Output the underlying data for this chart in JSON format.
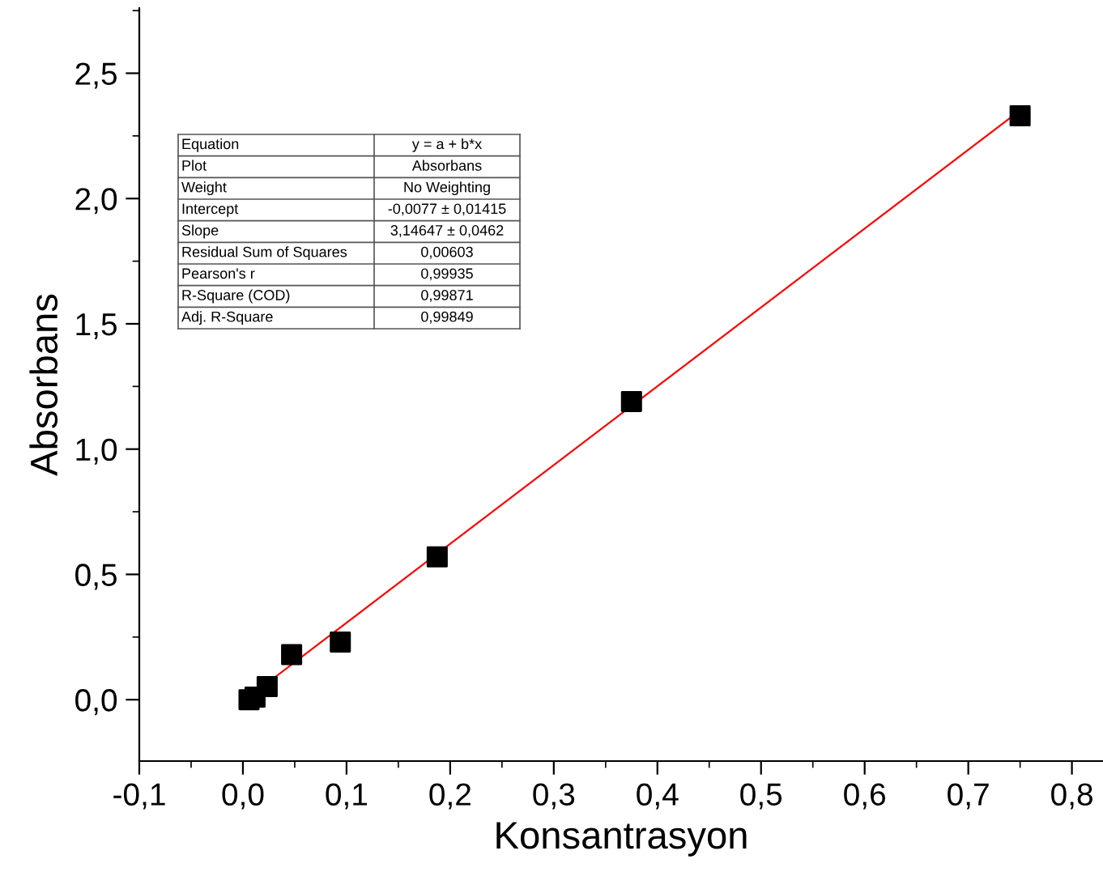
{
  "chart_data": {
    "type": "scatter",
    "xlabel": "Konsantrasyon",
    "ylabel": "Absorbans",
    "xlim": [
      -0.1,
      0.83
    ],
    "ylim": [
      -0.245,
      2.76
    ],
    "xticks": [
      {
        "value": -0.1,
        "label": "-0,1"
      },
      {
        "value": 0,
        "label": "0,0"
      },
      {
        "value": 0.1,
        "label": "0,1"
      },
      {
        "value": 0.2,
        "label": "0,2"
      },
      {
        "value": 0.3,
        "label": "0,3"
      },
      {
        "value": 0.4,
        "label": "0,4"
      },
      {
        "value": 0.5,
        "label": "0,5"
      },
      {
        "value": 0.6,
        "label": "0,6"
      },
      {
        "value": 0.7,
        "label": "0,7"
      },
      {
        "value": 0.8,
        "label": "0,8"
      }
    ],
    "yticks": [
      {
        "value": 0,
        "label": "0,0"
      },
      {
        "value": 0.5,
        "label": "0,5"
      },
      {
        "value": 1,
        "label": "1,0"
      },
      {
        "value": 1.5,
        "label": "1,5"
      },
      {
        "value": 2,
        "label": "2,0"
      },
      {
        "value": 2.5,
        "label": "2,5"
      }
    ],
    "grid": false,
    "legend": false,
    "series": [
      {
        "marker": "square",
        "color": "#000000",
        "x": [
          0.0059,
          0.0117,
          0.0234,
          0.047,
          0.094,
          0.1875,
          0.375,
          0.75
        ],
        "values": [
          0.0,
          0.01,
          0.052,
          0.18,
          0.23,
          0.57,
          1.19,
          2.33
        ]
      },
      {
        "type": "line",
        "marker": "none",
        "color": "#ff0000",
        "x": [
          0.0059,
          0.75
        ],
        "values": [
          0.011,
          2.352
        ]
      }
    ],
    "annotations": [
      "Equation",
      "y = a + b*x",
      "Plot",
      "Absorbans",
      "Weight",
      "No Weighting",
      "Intercept",
      "-0,0077 ± 0,01415",
      "Slope",
      "3,14647 ± 0,0462",
      "Residual Sum of Squares",
      "0,00603",
      "Pearson's r",
      "0,99935",
      "R-Square (COD)",
      "0,99871",
      "Adj. R-Square",
      "0,99849"
    ]
  }
}
